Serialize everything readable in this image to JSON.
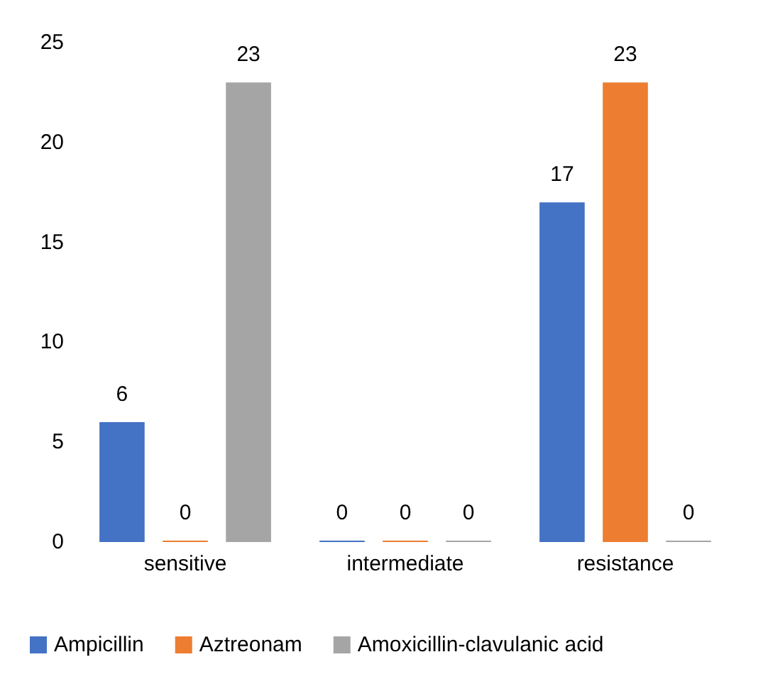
{
  "chart_data": {
    "type": "bar",
    "categories": [
      "sensitive",
      "intermediate",
      "resistance"
    ],
    "series": [
      {
        "name": "Ampicillin",
        "color": "#4472c4",
        "values": [
          6,
          0,
          17
        ]
      },
      {
        "name": "Aztreonam",
        "color": "#ed7d31",
        "values": [
          0,
          0,
          23
        ]
      },
      {
        "name": "Amoxicillin-clavulanic acid",
        "color": "#a5a5a5",
        "values": [
          23,
          0,
          0
        ]
      }
    ],
    "ylim": [
      0,
      25
    ],
    "yticks": [
      0,
      5,
      10,
      15,
      20,
      25
    ],
    "grid": false,
    "legend": "bottom",
    "data_labels": true
  }
}
